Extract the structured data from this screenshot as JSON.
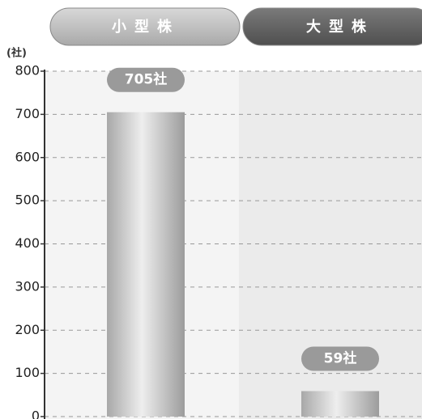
{
  "chart_data": {
    "type": "bar",
    "ylabel": "(社)",
    "categories": [
      "小型株",
      "大型株"
    ],
    "values": [
      705,
      59
    ],
    "value_labels": [
      "705社",
      "59社"
    ],
    "color": "#bdbdbd",
    "ylim": [
      0,
      800
    ],
    "yticks": [
      0,
      100,
      200,
      300,
      400,
      500,
      600,
      700,
      800
    ],
    "grid": true
  }
}
